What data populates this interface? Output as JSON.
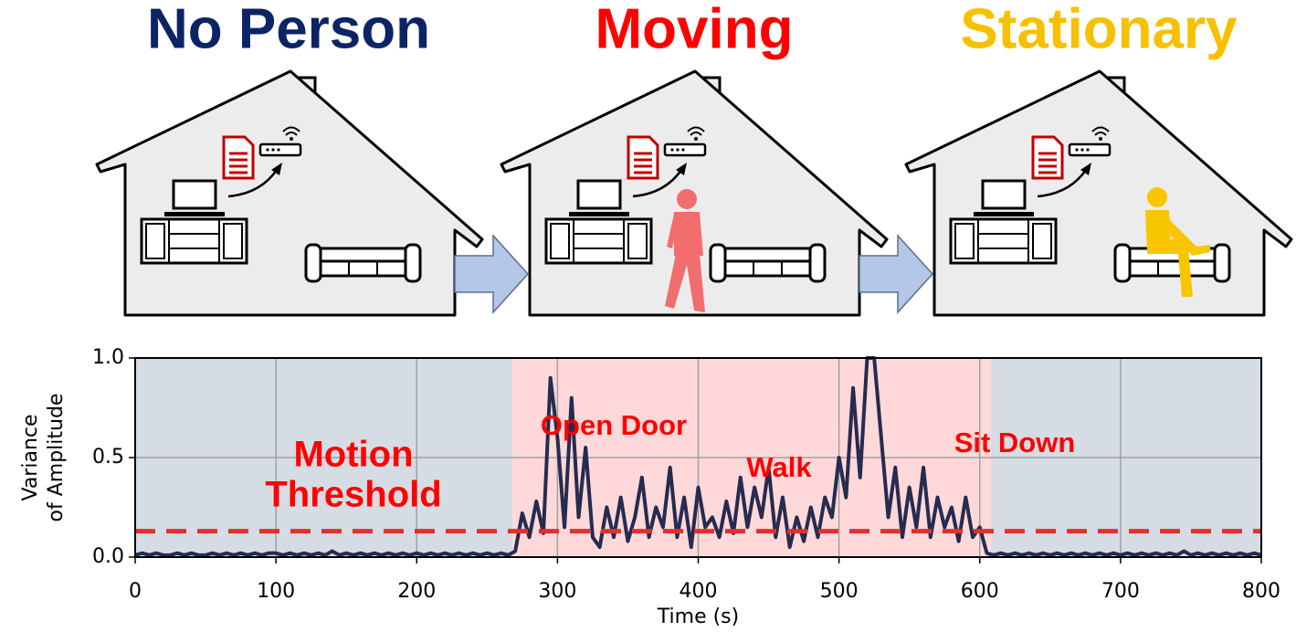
{
  "panels": [
    {
      "title": "No Person",
      "color": "#0c2466"
    },
    {
      "title": "Moving",
      "color": "#ff0000"
    },
    {
      "title": "Stationary",
      "color": "#f7c000"
    }
  ],
  "chart_data": {
    "type": "line",
    "ylabel": [
      "Variance",
      "of Amplitude"
    ],
    "xlabel": "Time (s)",
    "color": "#262b50",
    "threshold": 0.13,
    "threshold_color": "#e03030",
    "regions": [
      {
        "start": 0,
        "end": 268,
        "color": "#d6dce4"
      },
      {
        "start": 268,
        "end": 608,
        "color": "#ffd9d9"
      },
      {
        "start": 608,
        "end": 800,
        "color": "#d6dce4"
      }
    ],
    "annotations": [
      {
        "lines": [
          "Motion",
          "Threshold"
        ]
      },
      {
        "lines": [
          "Open Door"
        ]
      },
      {
        "lines": [
          "Walk"
        ]
      },
      {
        "lines": [
          "Sit Down"
        ]
      }
    ],
    "xlim": [
      0,
      800
    ],
    "ylim": [
      0,
      1
    ],
    "xticks": [
      0,
      100,
      200,
      300,
      400,
      500,
      600,
      700,
      800
    ],
    "yticks": [
      {
        "value": 0,
        "label": "0.0"
      },
      {
        "value": 0.5,
        "label": "0.5"
      },
      {
        "value": 1,
        "label": "1.0"
      }
    ],
    "grid": true,
    "x": [
      0,
      5,
      10,
      15,
      20,
      25,
      30,
      35,
      40,
      45,
      50,
      55,
      60,
      65,
      70,
      75,
      80,
      85,
      90,
      95,
      100,
      105,
      110,
      115,
      120,
      125,
      130,
      135,
      140,
      145,
      150,
      155,
      160,
      165,
      170,
      175,
      180,
      185,
      190,
      195,
      200,
      205,
      210,
      215,
      220,
      225,
      230,
      235,
      240,
      245,
      250,
      255,
      260,
      265,
      270,
      275,
      280,
      285,
      290,
      295,
      300,
      305,
      310,
      315,
      320,
      325,
      330,
      335,
      340,
      345,
      350,
      355,
      360,
      365,
      370,
      375,
      380,
      385,
      390,
      395,
      400,
      405,
      410,
      415,
      420,
      425,
      430,
      435,
      440,
      445,
      450,
      455,
      460,
      465,
      470,
      475,
      480,
      485,
      490,
      495,
      500,
      505,
      510,
      515,
      520,
      525,
      530,
      535,
      540,
      545,
      550,
      555,
      560,
      565,
      570,
      575,
      580,
      585,
      590,
      595,
      600,
      605,
      610,
      615,
      620,
      625,
      630,
      635,
      640,
      645,
      650,
      655,
      660,
      665,
      670,
      675,
      680,
      685,
      690,
      695,
      700,
      705,
      710,
      715,
      720,
      725,
      730,
      735,
      740,
      745,
      750,
      755,
      760,
      765,
      770,
      775,
      780,
      785,
      790,
      795,
      800
    ],
    "values": [
      0.01,
      0.02,
      0.01,
      0.02,
      0.01,
      0.01,
      0.02,
      0.01,
      0.02,
      0.01,
      0.01,
      0.02,
      0.01,
      0.02,
      0.01,
      0.02,
      0.01,
      0.02,
      0.01,
      0.02,
      0.02,
      0.01,
      0.02,
      0.01,
      0.02,
      0.01,
      0.02,
      0.01,
      0.03,
      0.01,
      0.02,
      0.01,
      0.02,
      0.01,
      0.02,
      0.01,
      0.02,
      0.01,
      0.02,
      0.01,
      0.02,
      0.01,
      0.02,
      0.01,
      0.02,
      0.01,
      0.02,
      0.01,
      0.02,
      0.01,
      0.02,
      0.01,
      0.02,
      0.01,
      0.03,
      0.22,
      0.1,
      0.28,
      0.12,
      0.9,
      0.6,
      0.15,
      0.8,
      0.2,
      0.55,
      0.1,
      0.05,
      0.25,
      0.1,
      0.3,
      0.08,
      0.2,
      0.4,
      0.1,
      0.25,
      0.15,
      0.45,
      0.1,
      0.3,
      0.05,
      0.35,
      0.15,
      0.2,
      0.1,
      0.28,
      0.12,
      0.4,
      0.15,
      0.35,
      0.2,
      0.45,
      0.1,
      0.3,
      0.05,
      0.2,
      0.08,
      0.25,
      0.1,
      0.3,
      0.2,
      0.5,
      0.3,
      0.85,
      0.4,
      1.0,
      1.0,
      0.6,
      0.2,
      0.45,
      0.1,
      0.35,
      0.15,
      0.45,
      0.1,
      0.3,
      0.15,
      0.25,
      0.08,
      0.3,
      0.1,
      0.15,
      0.02,
      0.01,
      0.02,
      0.01,
      0.02,
      0.01,
      0.02,
      0.01,
      0.02,
      0.01,
      0.02,
      0.01,
      0.02,
      0.01,
      0.02,
      0.01,
      0.02,
      0.01,
      0.02,
      0.01,
      0.02,
      0.01,
      0.02,
      0.01,
      0.02,
      0.01,
      0.02,
      0.01,
      0.03,
      0.01,
      0.02,
      0.01,
      0.02,
      0.01,
      0.02,
      0.01,
      0.02,
      0.01,
      0.02,
      0.01
    ]
  }
}
